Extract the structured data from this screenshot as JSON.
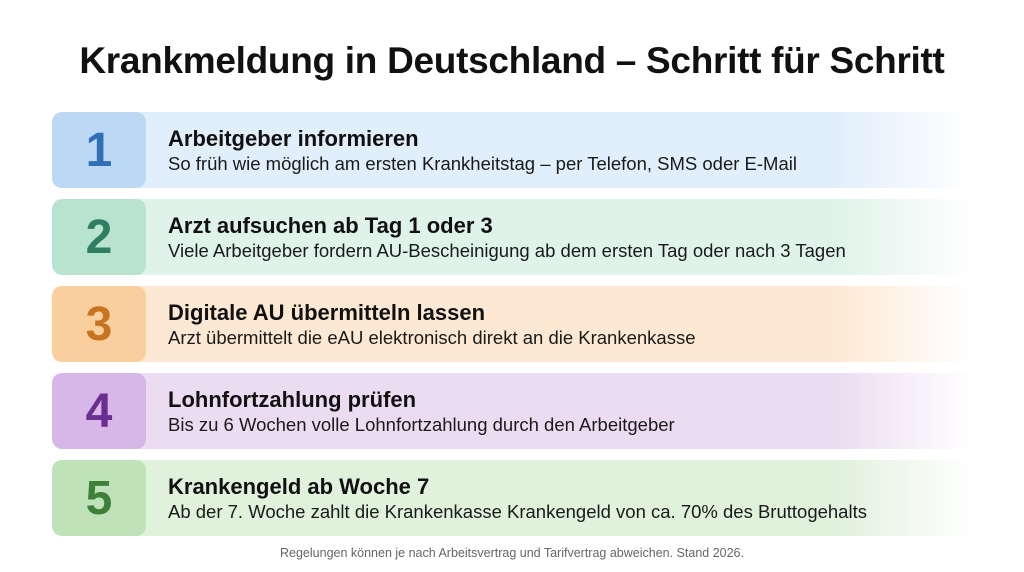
{
  "title": "Krankmeldung in Deutschland – Schritt für Schritt",
  "steps": [
    {
      "number": "1",
      "title": "Arbeitgeber informieren",
      "text": "So früh wie möglich am ersten Krankheitstag – per Telefon, SMS oder E-Mail",
      "bg": "#e1eefb",
      "box": "#bcd8f5",
      "color": "#2f6fb5"
    },
    {
      "number": "2",
      "title": "Arzt aufsuchen ab Tag 1 oder 3",
      "text": "Viele Arbeitgeber fordern AU-Bescheinigung ab dem ersten Tag oder nach 3 Tagen",
      "bg": "#dff3ea",
      "box": "#b8e3cf",
      "color": "#2f7d62"
    },
    {
      "number": "3",
      "title": "Digitale AU übermitteln lassen",
      "text": "Arzt übermittelt die eAU elektronisch direkt an die Krankenkasse",
      "bg": "#fde9d3",
      "box": "#f9cf9e",
      "color": "#c8731f"
    },
    {
      "number": "4",
      "title": "Lohnfortzahlung prüfen",
      "text": "Bis zu 6 Wochen volle Lohnfortzahlung durch den Arbeitgeber",
      "bg": "#ecdcf2",
      "box": "#d7b6e8",
      "color": "#6a2f91"
    },
    {
      "number": "5",
      "title": "Krankengeld ab Woche 7",
      "text": "Ab der 7. Woche zahlt die Krankenkasse Krankengeld von ca. 70% des Bruttogehalts",
      "bg": "#e0f1dc",
      "box": "#bfe2b8",
      "color": "#3e7f3a"
    }
  ],
  "footer": "Regelungen können je nach Arbeitsvertrag und Tarifvertrag abweichen. Stand 2026."
}
